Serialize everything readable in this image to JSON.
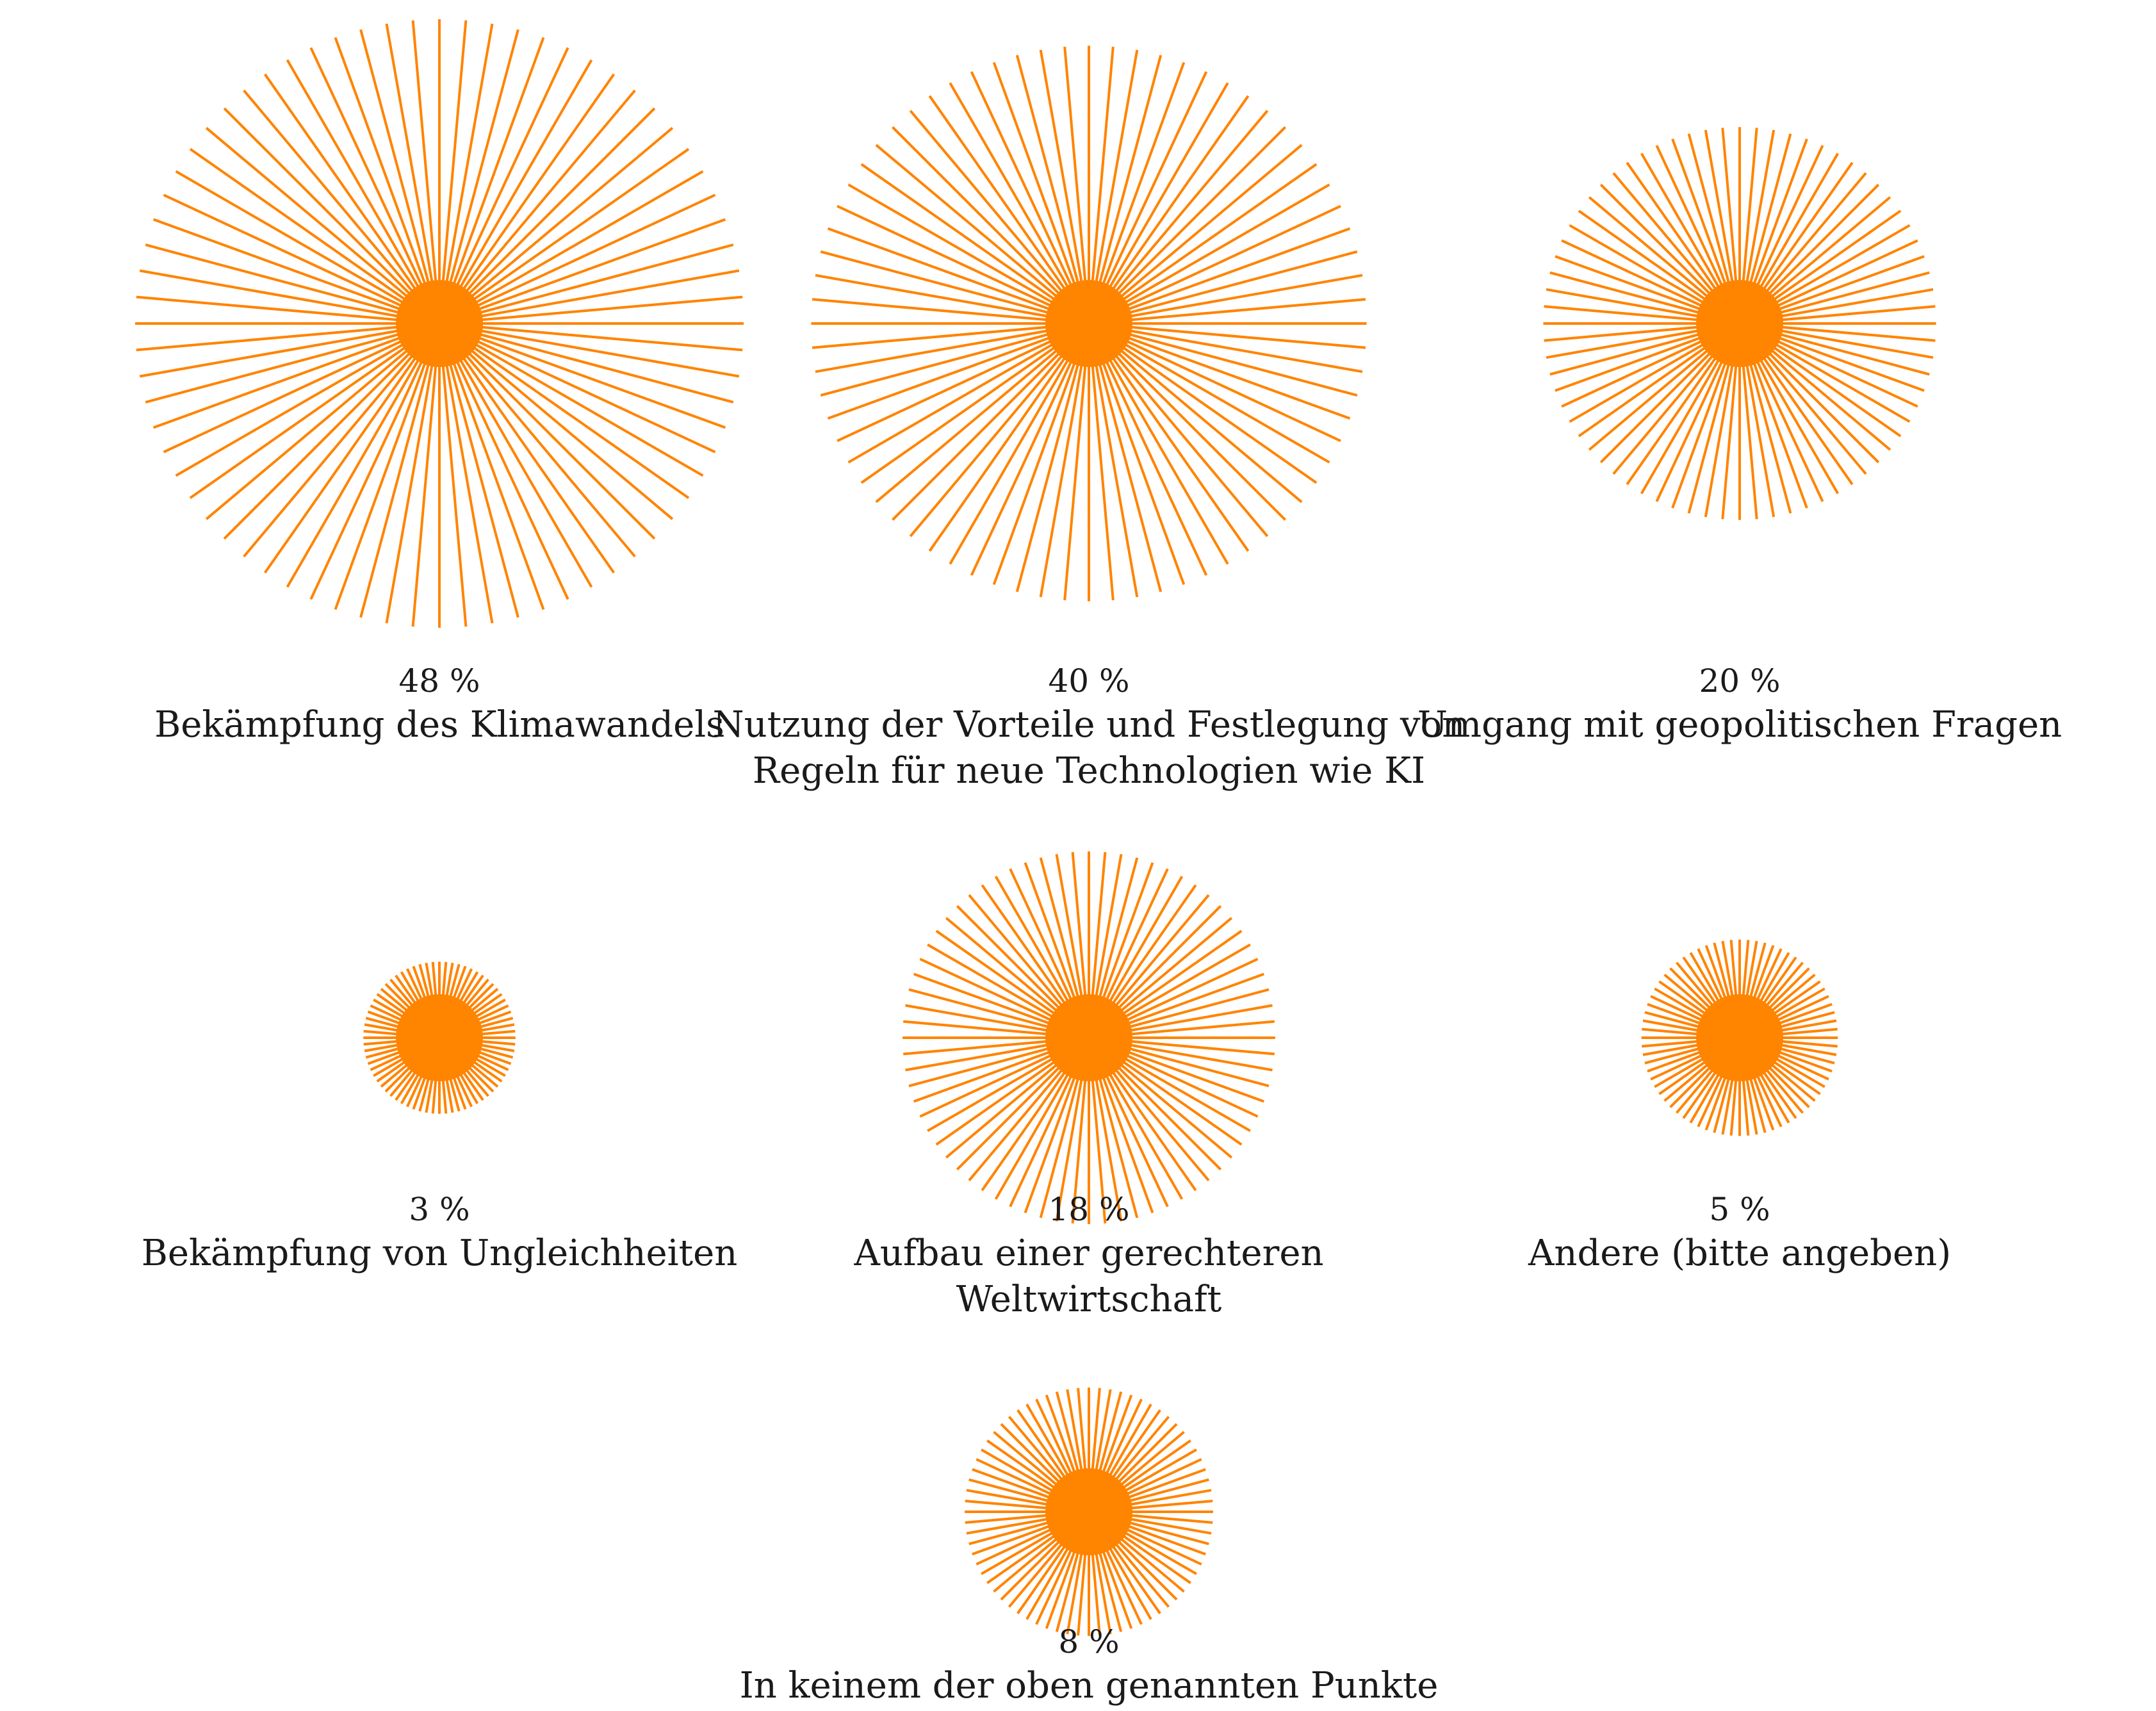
{
  "chart_data": {
    "type": "radial-burst",
    "unit": "%",
    "color": "#FF8400",
    "items": [
      {
        "value": 48,
        "value_label": "48 %",
        "label_lines": [
          "Bekämpfung des Klimawandels"
        ]
      },
      {
        "value": 40,
        "value_label": "40 %",
        "label_lines": [
          "Nutzung der Vorteile und Festlegung von",
          "Regeln für neue Technologien wie KI"
        ]
      },
      {
        "value": 20,
        "value_label": "20 %",
        "label_lines": [
          "Umgang mit geopolitischen Fragen"
        ]
      },
      {
        "value": 3,
        "value_label": "3 %",
        "label_lines": [
          "Bekämpfung von Ungleichheiten"
        ]
      },
      {
        "value": 18,
        "value_label": "18 %",
        "label_lines": [
          "Aufbau einer gerechteren",
          "Weltwirtschaft"
        ]
      },
      {
        "value": 5,
        "value_label": "5 %",
        "label_lines": [
          "Andere (bitte angeben)"
        ]
      },
      {
        "value": 8,
        "value_label": "8 %",
        "label_lines": [
          "In keinem der oben genannten Punkte"
        ]
      }
    ]
  }
}
